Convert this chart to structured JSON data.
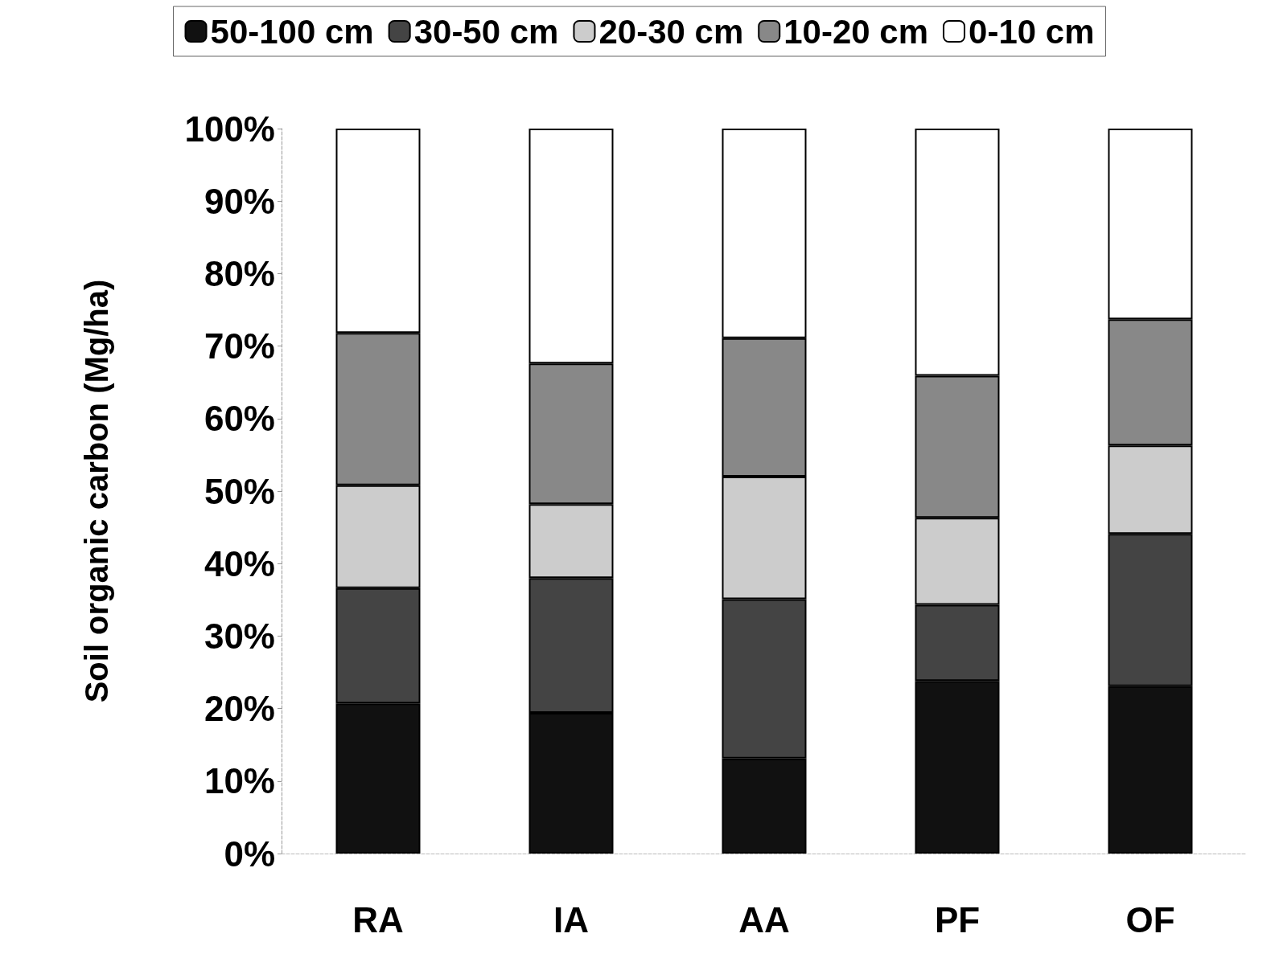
{
  "chart_data": {
    "type": "bar",
    "stacked": true,
    "ylabel": "Soil organic carbon (Mg/ha)",
    "categories": [
      "RA",
      "IA",
      "AA",
      "PF",
      "OF"
    ],
    "series": [
      {
        "name": "50-100 cm",
        "color": "#111111",
        "values": [
          20.7,
          19.4,
          13.1,
          23.8,
          23.1
        ]
      },
      {
        "name": "30-50 cm",
        "color": "#444444",
        "values": [
          15.9,
          18.6,
          22.0,
          10.5,
          21.0
        ]
      },
      {
        "name": "20-30 cm",
        "color": "#cccccc",
        "values": [
          14.2,
          10.2,
          16.9,
          12.0,
          12.2
        ]
      },
      {
        "name": "10-20 cm",
        "color": "#888888",
        "values": [
          21.0,
          19.4,
          19.1,
          19.6,
          17.4
        ]
      },
      {
        "name": "0-10 cm",
        "color": "#ffffff",
        "values": [
          28.2,
          32.4,
          28.9,
          34.1,
          26.3
        ]
      }
    ],
    "ylim": [
      0,
      100
    ],
    "yticks": [
      {
        "value": 0,
        "label": "0%"
      },
      {
        "value": 10,
        "label": "10%"
      },
      {
        "value": 20,
        "label": "20%"
      },
      {
        "value": 30,
        "label": "30%"
      },
      {
        "value": 40,
        "label": "40%"
      },
      {
        "value": 50,
        "label": "50%"
      },
      {
        "value": 60,
        "label": "60%"
      },
      {
        "value": 70,
        "label": "70%"
      },
      {
        "value": 80,
        "label": "80%"
      },
      {
        "value": 90,
        "label": "90%"
      },
      {
        "value": 100,
        "label": "100%"
      }
    ],
    "legend": "top",
    "grid": false
  }
}
